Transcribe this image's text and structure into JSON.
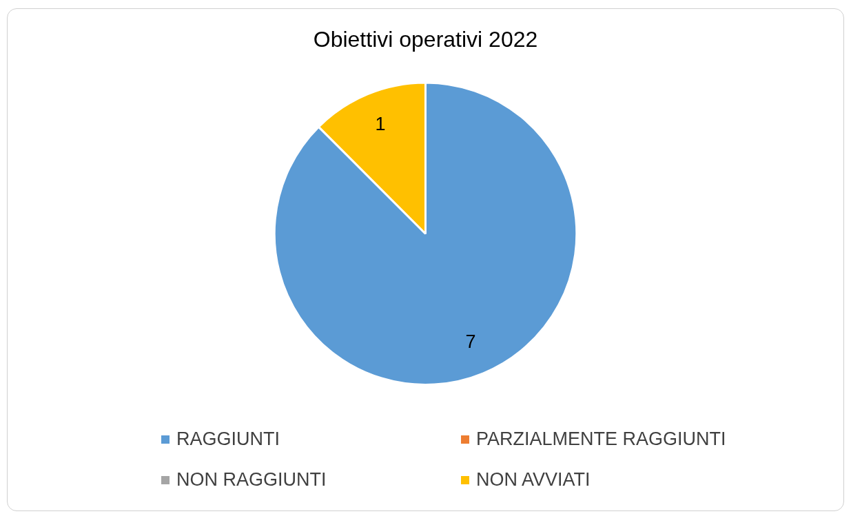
{
  "chart_data": {
    "type": "pie",
    "title": "Obiettivi operativi 2022",
    "categories": [
      "RAGGIUNTI",
      "PARZIALMENTE RAGGIUNTI",
      "NON RAGGIUNTI",
      "NON AVVIATI"
    ],
    "values": [
      7,
      0,
      0,
      1
    ],
    "colors": [
      "#5b9bd5",
      "#ed7d31",
      "#a5a5a5",
      "#ffc000"
    ],
    "value_labels": [
      "7",
      null,
      null,
      "1"
    ],
    "legend": "bottom"
  }
}
